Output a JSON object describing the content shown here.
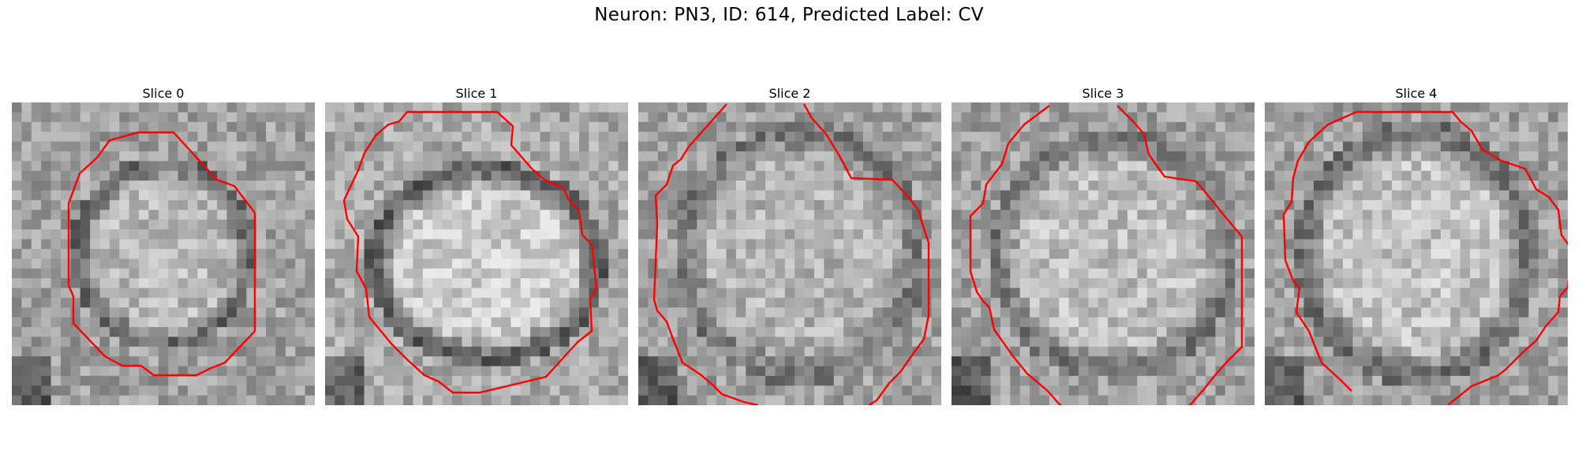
{
  "figure": {
    "title": "Neuron: PN3, ID: 614, Predicted Label: CV"
  },
  "contour_color": "#ff0000",
  "slices": [
    {
      "title": "Slice 0"
    },
    {
      "title": "Slice 1"
    },
    {
      "title": "Slice 2"
    },
    {
      "title": "Slice 3"
    },
    {
      "title": "Slice 4"
    }
  ]
}
